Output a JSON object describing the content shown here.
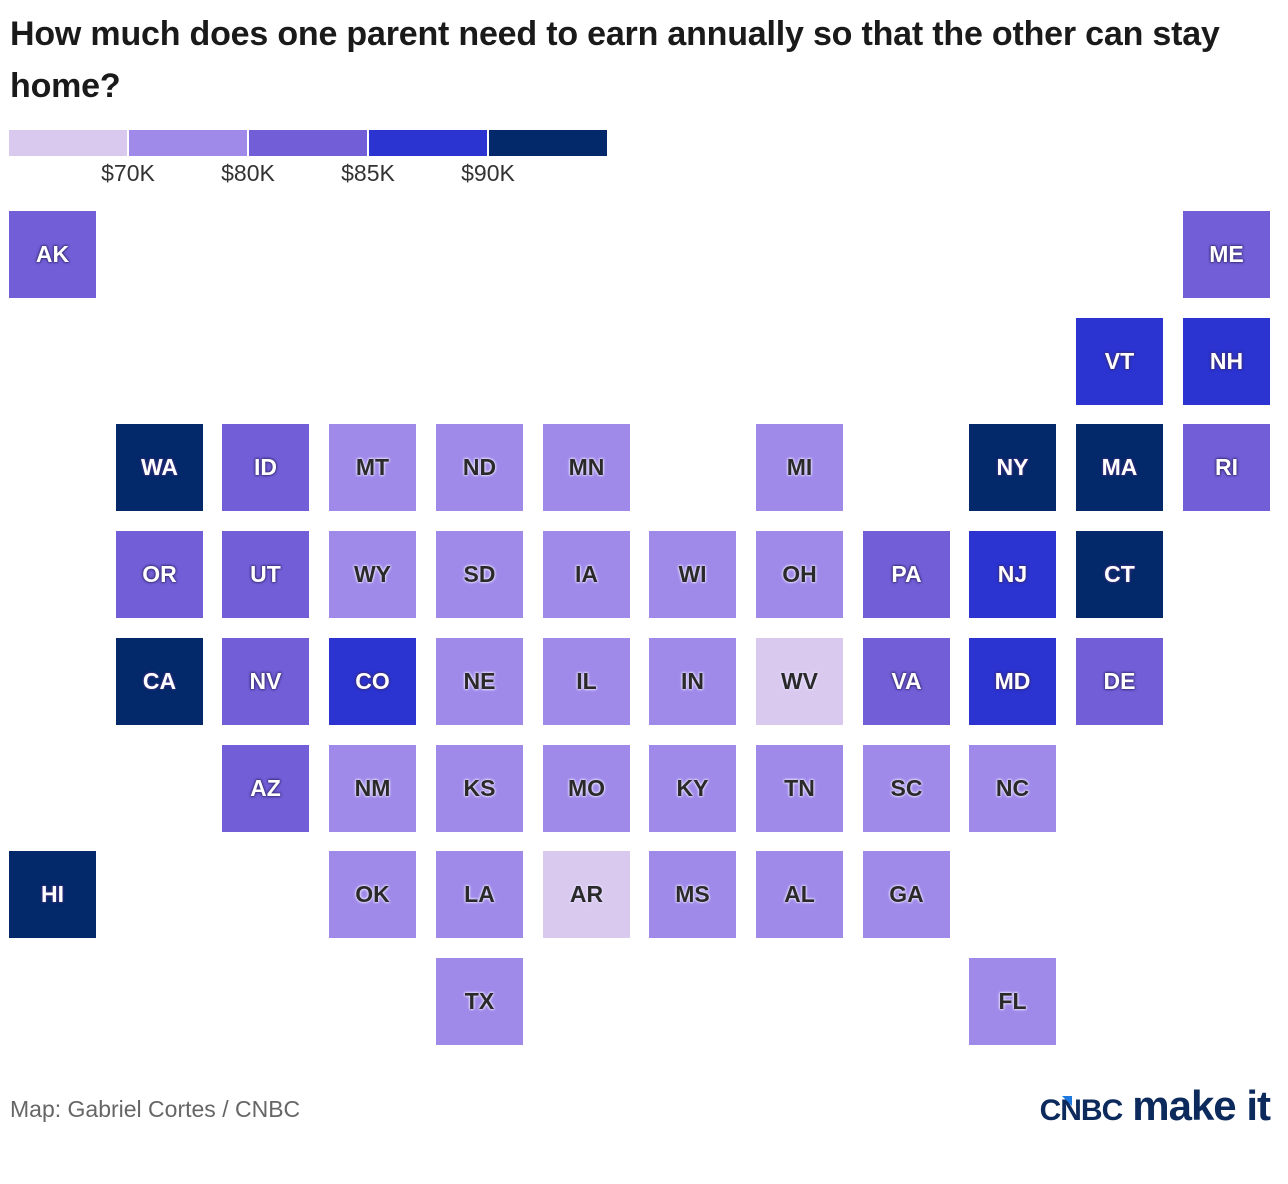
{
  "title": "How much does one parent need to earn annually so that the other can stay home?",
  "legend": {
    "colors": [
      "#d9c9ef",
      "#9f8aea",
      "#725fd7",
      "#2b34d1",
      "#03296a"
    ],
    "thresholds": [
      "$70K",
      "$80K",
      "$85K",
      "$90K"
    ]
  },
  "chart_data": {
    "type": "tile-map",
    "title": "How much does one parent need to earn annually so that the other can stay home?",
    "legend_placement": "top-left",
    "bins": [
      {
        "label": "under $70K",
        "color": "#d9c9ef"
      },
      {
        "label": "$70K-$80K",
        "color": "#9f8aea"
      },
      {
        "label": "$80K-$85K",
        "color": "#725fd7"
      },
      {
        "label": "$85K-$90K",
        "color": "#2b34d1"
      },
      {
        "label": "$90K+",
        "color": "#03296a"
      }
    ],
    "states": [
      {
        "code": "AK",
        "bin": 2,
        "row": 0,
        "col": 0
      },
      {
        "code": "ME",
        "bin": 2,
        "row": 0,
        "col": 11
      },
      {
        "code": "VT",
        "bin": 3,
        "row": 1,
        "col": 10
      },
      {
        "code": "NH",
        "bin": 3,
        "row": 1,
        "col": 11
      },
      {
        "code": "WA",
        "bin": 4,
        "row": 2,
        "col": 1
      },
      {
        "code": "ID",
        "bin": 2,
        "row": 2,
        "col": 2
      },
      {
        "code": "MT",
        "bin": 1,
        "row": 2,
        "col": 3
      },
      {
        "code": "ND",
        "bin": 1,
        "row": 2,
        "col": 4
      },
      {
        "code": "MN",
        "bin": 1,
        "row": 2,
        "col": 5
      },
      {
        "code": "MI",
        "bin": 1,
        "row": 2,
        "col": 7
      },
      {
        "code": "NY",
        "bin": 4,
        "row": 2,
        "col": 9
      },
      {
        "code": "MA",
        "bin": 4,
        "row": 2,
        "col": 10
      },
      {
        "code": "RI",
        "bin": 2,
        "row": 2,
        "col": 11
      },
      {
        "code": "OR",
        "bin": 2,
        "row": 3,
        "col": 1
      },
      {
        "code": "UT",
        "bin": 2,
        "row": 3,
        "col": 2
      },
      {
        "code": "WY",
        "bin": 1,
        "row": 3,
        "col": 3
      },
      {
        "code": "SD",
        "bin": 1,
        "row": 3,
        "col": 4
      },
      {
        "code": "IA",
        "bin": 1,
        "row": 3,
        "col": 5
      },
      {
        "code": "WI",
        "bin": 1,
        "row": 3,
        "col": 6
      },
      {
        "code": "OH",
        "bin": 1,
        "row": 3,
        "col": 7
      },
      {
        "code": "PA",
        "bin": 2,
        "row": 3,
        "col": 8
      },
      {
        "code": "NJ",
        "bin": 3,
        "row": 3,
        "col": 9
      },
      {
        "code": "CT",
        "bin": 4,
        "row": 3,
        "col": 10
      },
      {
        "code": "CA",
        "bin": 4,
        "row": 4,
        "col": 1
      },
      {
        "code": "NV",
        "bin": 2,
        "row": 4,
        "col": 2
      },
      {
        "code": "CO",
        "bin": 3,
        "row": 4,
        "col": 3
      },
      {
        "code": "NE",
        "bin": 1,
        "row": 4,
        "col": 4
      },
      {
        "code": "IL",
        "bin": 1,
        "row": 4,
        "col": 5
      },
      {
        "code": "IN",
        "bin": 1,
        "row": 4,
        "col": 6
      },
      {
        "code": "WV",
        "bin": 0,
        "row": 4,
        "col": 7
      },
      {
        "code": "VA",
        "bin": 2,
        "row": 4,
        "col": 8
      },
      {
        "code": "MD",
        "bin": 3,
        "row": 4,
        "col": 9
      },
      {
        "code": "DE",
        "bin": 2,
        "row": 4,
        "col": 10
      },
      {
        "code": "AZ",
        "bin": 2,
        "row": 5,
        "col": 2
      },
      {
        "code": "NM",
        "bin": 1,
        "row": 5,
        "col": 3
      },
      {
        "code": "KS",
        "bin": 1,
        "row": 5,
        "col": 4
      },
      {
        "code": "MO",
        "bin": 1,
        "row": 5,
        "col": 5
      },
      {
        "code": "KY",
        "bin": 1,
        "row": 5,
        "col": 6
      },
      {
        "code": "TN",
        "bin": 1,
        "row": 5,
        "col": 7
      },
      {
        "code": "SC",
        "bin": 1,
        "row": 5,
        "col": 8
      },
      {
        "code": "NC",
        "bin": 1,
        "row": 5,
        "col": 9
      },
      {
        "code": "HI",
        "bin": 4,
        "row": 6,
        "col": 0
      },
      {
        "code": "OK",
        "bin": 1,
        "row": 6,
        "col": 3
      },
      {
        "code": "LA",
        "bin": 1,
        "row": 6,
        "col": 4
      },
      {
        "code": "AR",
        "bin": 0,
        "row": 6,
        "col": 5
      },
      {
        "code": "MS",
        "bin": 1,
        "row": 6,
        "col": 6
      },
      {
        "code": "AL",
        "bin": 1,
        "row": 6,
        "col": 7
      },
      {
        "code": "GA",
        "bin": 1,
        "row": 6,
        "col": 8
      },
      {
        "code": "TX",
        "bin": 1,
        "row": 7,
        "col": 4
      },
      {
        "code": "FL",
        "bin": 1,
        "row": 7,
        "col": 9
      }
    ]
  },
  "footer": {
    "credit": "Map: Gabriel Cortes / CNBC",
    "logo_brand": "CNBC",
    "logo_product": "make it"
  }
}
